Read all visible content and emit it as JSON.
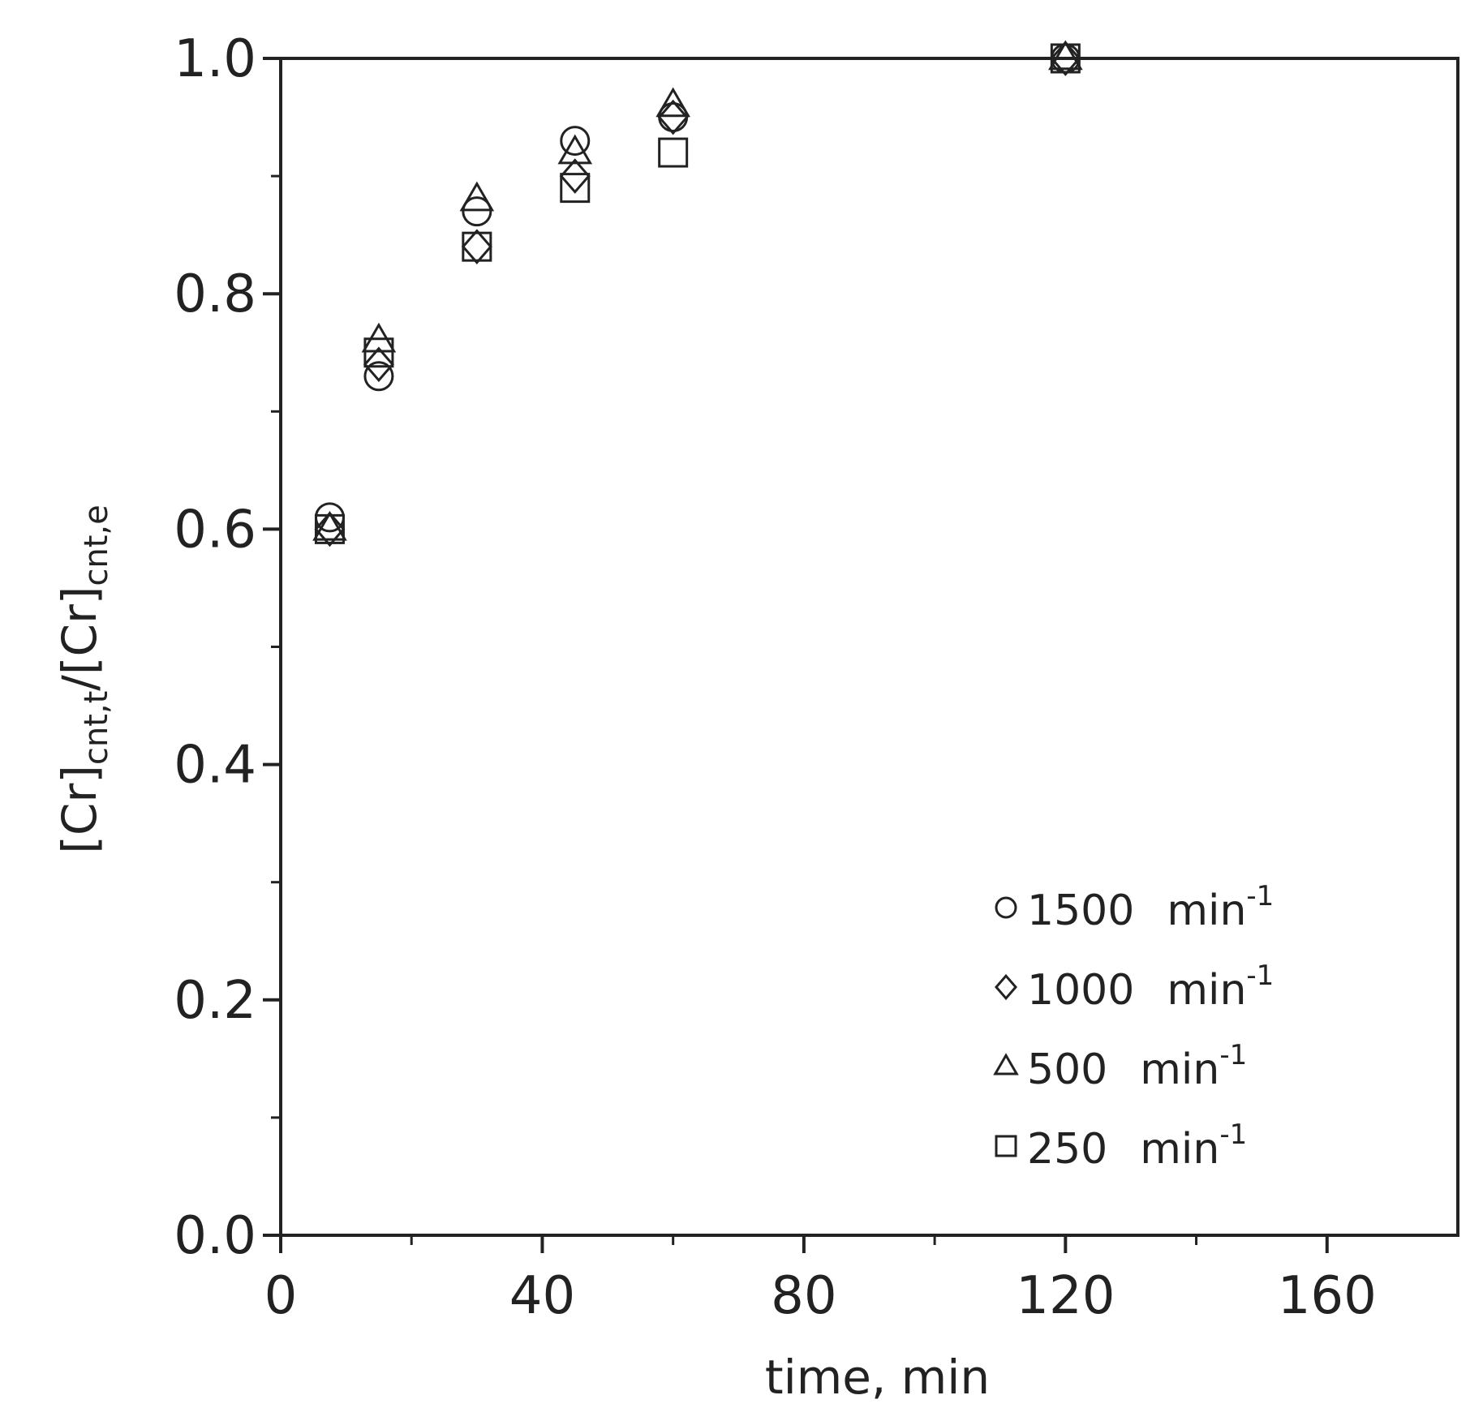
{
  "chart_data": {
    "type": "scatter",
    "xlabel": "time, min",
    "ylabel": {
      "parts": [
        {
          "text": "[Cr]",
          "style": "normal"
        },
        {
          "text": "cnt,t",
          "style": "sub"
        },
        {
          "text": "/[Cr]",
          "style": "normal"
        },
        {
          "text": "cnt,e",
          "style": "sub"
        }
      ]
    },
    "xlim": [
      0,
      180
    ],
    "ylim": [
      0.0,
      1.0
    ],
    "x_ticks": [
      0,
      40,
      80,
      120,
      160
    ],
    "x_tick_labels": [
      "0",
      "40",
      "80",
      "120",
      "160"
    ],
    "x_minor_ticks": [
      20,
      60,
      100,
      140
    ],
    "y_ticks": [
      0.0,
      0.2,
      0.4,
      0.6,
      0.8,
      1.0
    ],
    "y_tick_labels": [
      "0.0",
      "0.2",
      "0.4",
      "0.6",
      "0.8",
      "1.0"
    ],
    "y_minor_ticks": [
      0.1,
      0.3,
      0.5,
      0.7,
      0.9
    ],
    "grid": false,
    "legend_position": "bottom-right",
    "series": [
      {
        "name": "1500",
        "unit": "min",
        "exponent": "-1",
        "marker": "circle",
        "x": [
          7.5,
          15,
          30,
          45,
          60,
          120
        ],
        "y": [
          0.61,
          0.73,
          0.87,
          0.93,
          0.95,
          1.0
        ]
      },
      {
        "name": "1000",
        "unit": "min",
        "exponent": "-1",
        "marker": "diamond",
        "x": [
          7.5,
          15,
          30,
          45,
          60,
          120
        ],
        "y": [
          0.6,
          0.74,
          0.84,
          0.9,
          0.95,
          1.0
        ]
      },
      {
        "name": "500",
        "unit": "min",
        "exponent": "-1",
        "marker": "triangle",
        "x": [
          7.5,
          15,
          30,
          45,
          60,
          120
        ],
        "y": [
          0.6,
          0.76,
          0.88,
          0.92,
          0.96,
          1.0
        ]
      },
      {
        "name": "250",
        "unit": "min",
        "exponent": "-1",
        "marker": "square",
        "x": [
          7.5,
          15,
          30,
          45,
          60,
          120
        ],
        "y": [
          0.6,
          0.75,
          0.84,
          0.89,
          0.92,
          1.0
        ]
      }
    ]
  }
}
